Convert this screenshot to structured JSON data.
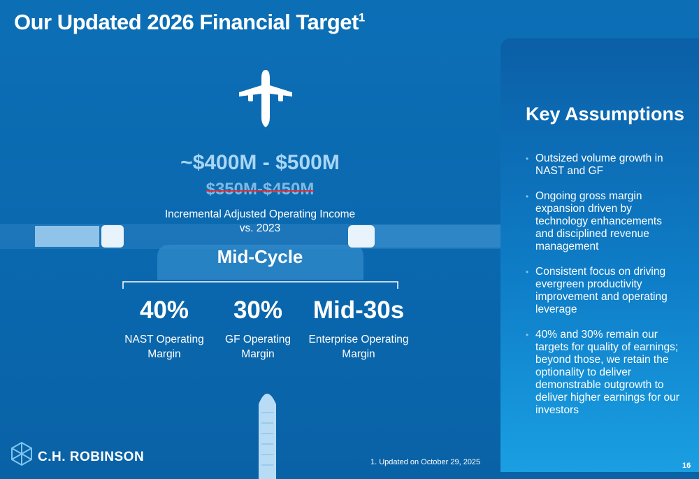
{
  "header": {
    "title": "Our Updated 2026 Financial Target",
    "superscript": "1"
  },
  "target": {
    "range": "~$400M - $500M",
    "previous": "$350M-$450M",
    "description": [
      "Incremental Adjusted Operating Income",
      "vs. 2023"
    ]
  },
  "mid_cycle": {
    "label": "Mid-Cycle",
    "metrics": [
      {
        "value": "40%",
        "label": [
          "NAST Operating",
          "Margin"
        ]
      },
      {
        "value": "30%",
        "label": [
          "GF Operating",
          "Margin"
        ]
      },
      {
        "value": "Mid-30s",
        "label": [
          "Enterprise Operating",
          "Margin"
        ]
      }
    ]
  },
  "assumptions": {
    "title": "Key Assumptions",
    "items": [
      "Outsized volume growth in NAST and GF",
      "Ongoing gross margin expansion driven by technology enhancements and disciplined revenue management",
      "Consistent focus on driving evergreen productivity improvement and operating leverage",
      "40% and 30% remain our targets for quality of earnings; beyond those, we retain the optionality to deliver demonstrable outgrowth to deliver higher earnings for our investors"
    ]
  },
  "footnote": "1.  Updated on October 29, 2025",
  "logo": "C.H. ROBINSON",
  "page_number": "16"
}
